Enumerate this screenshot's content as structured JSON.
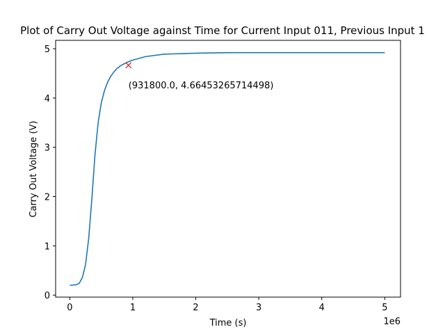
{
  "chart_data": {
    "type": "line",
    "title": "Plot of Carry Out Voltage against Time for Current Input 011, Previous Input 1",
    "xlabel": "Time (s)",
    "ylabel": "Carry Out Voltage (V)",
    "x_offset_label": "1e6",
    "xlim": [
      -225000,
      5250000
    ],
    "ylim": [
      -0.04,
      5.17
    ],
    "x_ticks": [
      0,
      1000000,
      2000000,
      3000000,
      4000000,
      5000000
    ],
    "x_tick_labels": [
      "0",
      "1",
      "2",
      "3",
      "4",
      "5"
    ],
    "y_ticks": [
      0,
      1,
      2,
      3,
      4,
      5
    ],
    "y_tick_labels": [
      "0",
      "1",
      "2",
      "3",
      "4",
      "5"
    ],
    "grid": false,
    "series": [
      {
        "color": "#1f77b4",
        "x": [
          0,
          100000,
          150000,
          200000,
          250000,
          300000,
          350000,
          400000,
          450000,
          500000,
          550000,
          600000,
          650000,
          700000,
          750000,
          800000,
          900000,
          1000000,
          1200000,
          1500000,
          2000000,
          2500000,
          3000000,
          3500000,
          4000000,
          4500000,
          5000000
        ],
        "y": [
          0.2,
          0.21,
          0.24,
          0.36,
          0.62,
          1.15,
          1.95,
          2.85,
          3.5,
          3.9,
          4.15,
          4.32,
          4.44,
          4.53,
          4.6,
          4.65,
          4.72,
          4.77,
          4.84,
          4.89,
          4.91,
          4.92,
          4.92,
          4.92,
          4.92,
          4.92,
          4.92
        ]
      }
    ],
    "marker": {
      "x": 931800.0,
      "y": 4.66453265714498,
      "symbol": "x",
      "color": "#d62728"
    },
    "annotation": {
      "text": "(931800.0, 4.66453265714498)",
      "x": 931800.0,
      "y": 4.66453265714498
    }
  }
}
